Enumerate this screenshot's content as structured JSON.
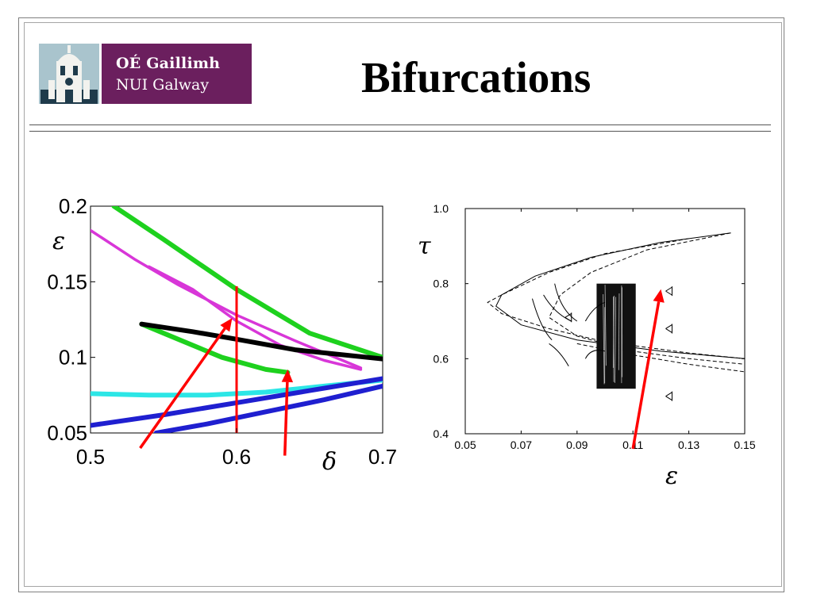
{
  "header": {
    "logo_line1": "OÉ Gaillimh",
    "logo_line2": "NUI Galway",
    "title": "Bifurcations"
  },
  "colors": {
    "logo_band": "#6b1f5e",
    "logo_icon_bg": "#a9c4cd",
    "green": "#1ed11e",
    "magenta": "#d836d8",
    "black": "#000000",
    "cyan": "#2ce6e6",
    "blue": "#1f1fd0",
    "red": "#ff0000"
  },
  "chart_data": [
    {
      "type": "line",
      "xlabel": "δ",
      "ylabel": "ε",
      "xlim": [
        0.5,
        0.7
      ],
      "ylim": [
        0.05,
        0.2
      ],
      "x_ticks": [
        "0.5",
        "0.6",
        "0.7"
      ],
      "y_ticks": [
        "0.05",
        "0.1",
        "0.15",
        "0.2"
      ],
      "grid": false,
      "series": [
        {
          "color": "green",
          "x": [
            0.516,
            0.55,
            0.6,
            0.65,
            0.7
          ],
          "y": [
            0.2,
            0.178,
            0.145,
            0.116,
            0.1
          ]
        },
        {
          "color": "green",
          "x": [
            0.535,
            0.56,
            0.59,
            0.62,
            0.635
          ],
          "y": [
            0.122,
            0.112,
            0.1,
            0.092,
            0.09
          ]
        },
        {
          "color": "magenta",
          "x": [
            0.5,
            0.53,
            0.56,
            0.6,
            0.64,
            0.685
          ],
          "y": [
            0.184,
            0.165,
            0.148,
            0.128,
            0.111,
            0.093
          ]
        },
        {
          "color": "magenta",
          "x": [
            0.54,
            0.57,
            0.6,
            0.63,
            0.66,
            0.685
          ],
          "y": [
            0.16,
            0.145,
            0.124,
            0.108,
            0.098,
            0.092
          ]
        },
        {
          "color": "black",
          "x": [
            0.535,
            0.57,
            0.6,
            0.64,
            0.7
          ],
          "y": [
            0.122,
            0.117,
            0.112,
            0.105,
            0.099
          ]
        },
        {
          "color": "cyan",
          "x": [
            0.5,
            0.54,
            0.58,
            0.62,
            0.66,
            0.7
          ],
          "y": [
            0.076,
            0.075,
            0.075,
            0.077,
            0.081,
            0.085
          ]
        },
        {
          "color": "blue",
          "x": [
            0.5,
            0.55,
            0.6,
            0.65,
            0.7
          ],
          "y": [
            0.055,
            0.062,
            0.07,
            0.078,
            0.086
          ]
        },
        {
          "color": "blue",
          "x": [
            0.545,
            0.58,
            0.62,
            0.66,
            0.7
          ],
          "y": [
            0.05,
            0.056,
            0.064,
            0.072,
            0.081
          ]
        }
      ],
      "annotations": {
        "vertical_line": {
          "x": 0.6,
          "y_range": [
            0.05,
            0.147
          ],
          "color": "red"
        },
        "arrows": [
          {
            "from": [
              0.534,
              0.04
            ],
            "to": [
              0.597,
              0.126
            ],
            "color": "red"
          },
          {
            "from": [
              0.633,
              0.035
            ],
            "to": [
              0.635,
              0.092
            ],
            "color": "red"
          }
        ]
      }
    },
    {
      "type": "line",
      "xlabel": "ε",
      "ylabel": "τ",
      "xlim": [
        0.05,
        0.15
      ],
      "ylim": [
        0.4,
        1.0
      ],
      "x_ticks": [
        "0.05",
        "0.07",
        "0.09",
        "0.11",
        "0.13",
        "0.15"
      ],
      "y_ticks": [
        "0.4",
        "0.6",
        "0.8",
        "1.0"
      ],
      "grid": false,
      "series": [
        {
          "style": "solid",
          "x": [
            0.145,
            0.12,
            0.095,
            0.075,
            0.063,
            0.061,
            0.07,
            0.09,
            0.12,
            0.15
          ],
          "y": [
            0.935,
            0.91,
            0.87,
            0.82,
            0.77,
            0.74,
            0.69,
            0.65,
            0.62,
            0.6
          ]
        },
        {
          "style": "dashed",
          "x": [
            0.13,
            0.1,
            0.08,
            0.063,
            0.058,
            0.063,
            0.08,
            0.1,
            0.13,
            0.15
          ],
          "y": [
            0.92,
            0.88,
            0.83,
            0.77,
            0.75,
            0.72,
            0.68,
            0.645,
            0.615,
            0.6
          ]
        },
        {
          "style": "dashed",
          "x": [
            0.145,
            0.115,
            0.095,
            0.084,
            0.08,
            0.09,
            0.11,
            0.13,
            0.15
          ],
          "y": [
            0.935,
            0.89,
            0.83,
            0.77,
            0.71,
            0.66,
            0.62,
            0.6,
            0.585
          ]
        },
        {
          "style": "dashed",
          "x": [
            0.09,
            0.11,
            0.13,
            0.15
          ],
          "y": [
            0.64,
            0.61,
            0.585,
            0.565
          ]
        }
      ],
      "chaotic_region": {
        "x_range": [
          0.097,
          0.111
        ],
        "y_range": [
          0.52,
          0.8
        ]
      },
      "annotations": {
        "arrows": [
          {
            "from": [
              0.11,
              0.36
            ],
            "to": [
              0.12,
              0.785
            ],
            "color": "red"
          }
        ]
      }
    }
  ]
}
